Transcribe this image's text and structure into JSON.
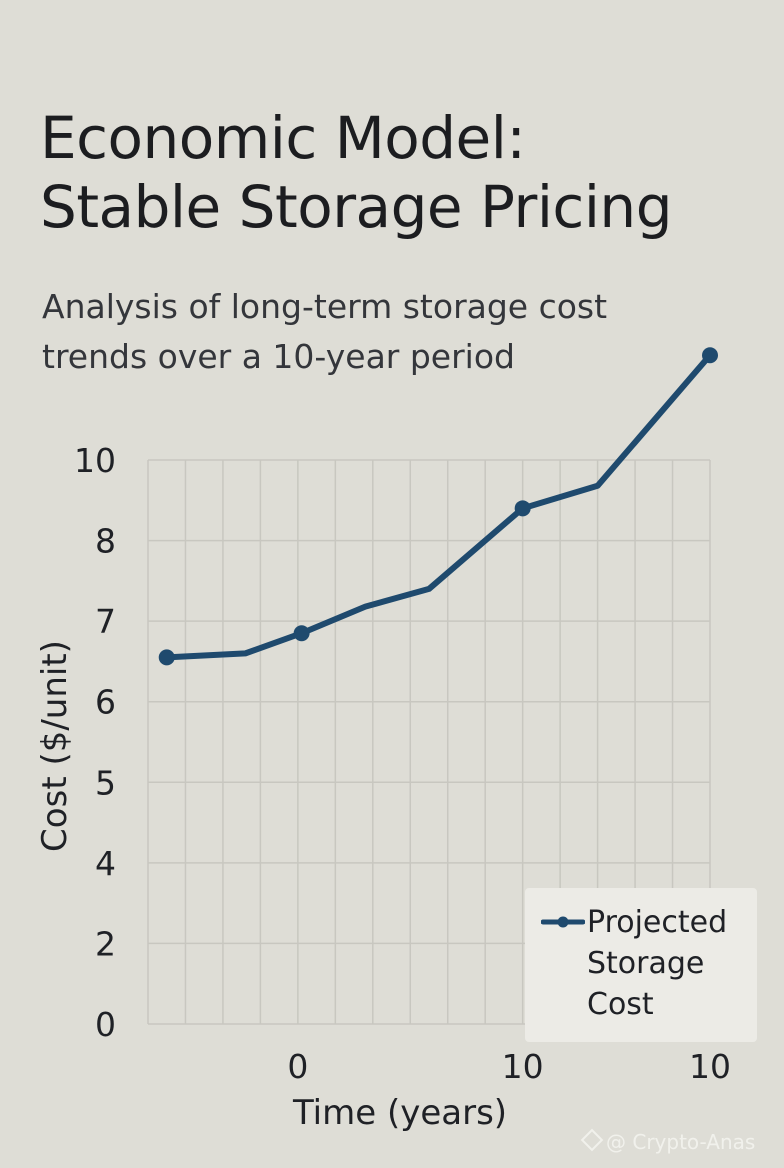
{
  "page": {
    "title_lines": [
      "Economic Model:",
      "Stable Storage Pricing"
    ],
    "subtitle_lines": [
      "Analysis of long-term storage cost",
      "trends over a 10-year period"
    ],
    "watermark": "@ Crypto-Anas",
    "watermark_icon": "binance-diamond-icon"
  },
  "colors": {
    "background": "#deddd6",
    "grid": "#c8c7c0",
    "series": "#1f4a6e",
    "text": "#1f2126",
    "legend_bg": "#ecebe6"
  },
  "chart_data": {
    "type": "line",
    "title": "Economic Model: Stable Storage Pricing",
    "xlabel": "Time (years)",
    "ylabel": "Cost ($/unit)",
    "grid": true,
    "legend_position": "bottom-right",
    "y_ticks": [
      "0",
      "2",
      "4",
      "5",
      "6",
      "7",
      "8",
      "10"
    ],
    "x_ticks": [
      {
        "label": "0",
        "slot": 4
      },
      {
        "label": "10",
        "slot": 10
      },
      {
        "label": "10",
        "slot": 15
      }
    ],
    "x_slots": 15,
    "series": [
      {
        "name": "Projected Storage Cost",
        "points": [
          {
            "slot": 0.5,
            "tick": 4.55,
            "marker": true
          },
          {
            "slot": 2.6,
            "tick": 4.6,
            "marker": false
          },
          {
            "slot": 4.1,
            "tick": 4.85,
            "marker": true
          },
          {
            "slot": 5.8,
            "tick": 5.18,
            "marker": false
          },
          {
            "slot": 7.5,
            "tick": 5.4,
            "marker": false
          },
          {
            "slot": 10.0,
            "tick": 6.4,
            "marker": true
          },
          {
            "slot": 12.0,
            "tick": 6.68,
            "marker": false
          },
          {
            "slot": 15.0,
            "tick": 8.3,
            "marker": true
          }
        ]
      }
    ]
  }
}
